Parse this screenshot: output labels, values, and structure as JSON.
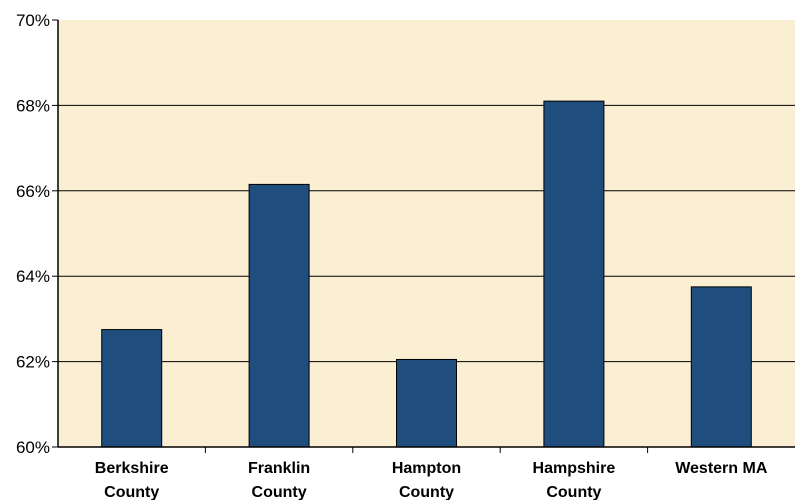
{
  "chart_data": {
    "type": "bar",
    "title": "",
    "xlabel": "",
    "ylabel": "",
    "categories": [
      [
        "Berkshire",
        "County"
      ],
      [
        "Franklin",
        "County"
      ],
      [
        "Hampton",
        "County"
      ],
      [
        "Hampshire",
        "County"
      ],
      [
        "Western MA"
      ]
    ],
    "values": [
      62.75,
      66.15,
      62.05,
      68.1,
      63.75
    ],
    "ylim": [
      60,
      70
    ],
    "yticks": [
      "60%",
      "62%",
      "64%",
      "66%",
      "68%",
      "70%"
    ],
    "grid": true,
    "legend": "none",
    "colors": {
      "bar": "#1f4e7e",
      "plot_background": "#fbefd3",
      "gridline": "#000000"
    }
  }
}
